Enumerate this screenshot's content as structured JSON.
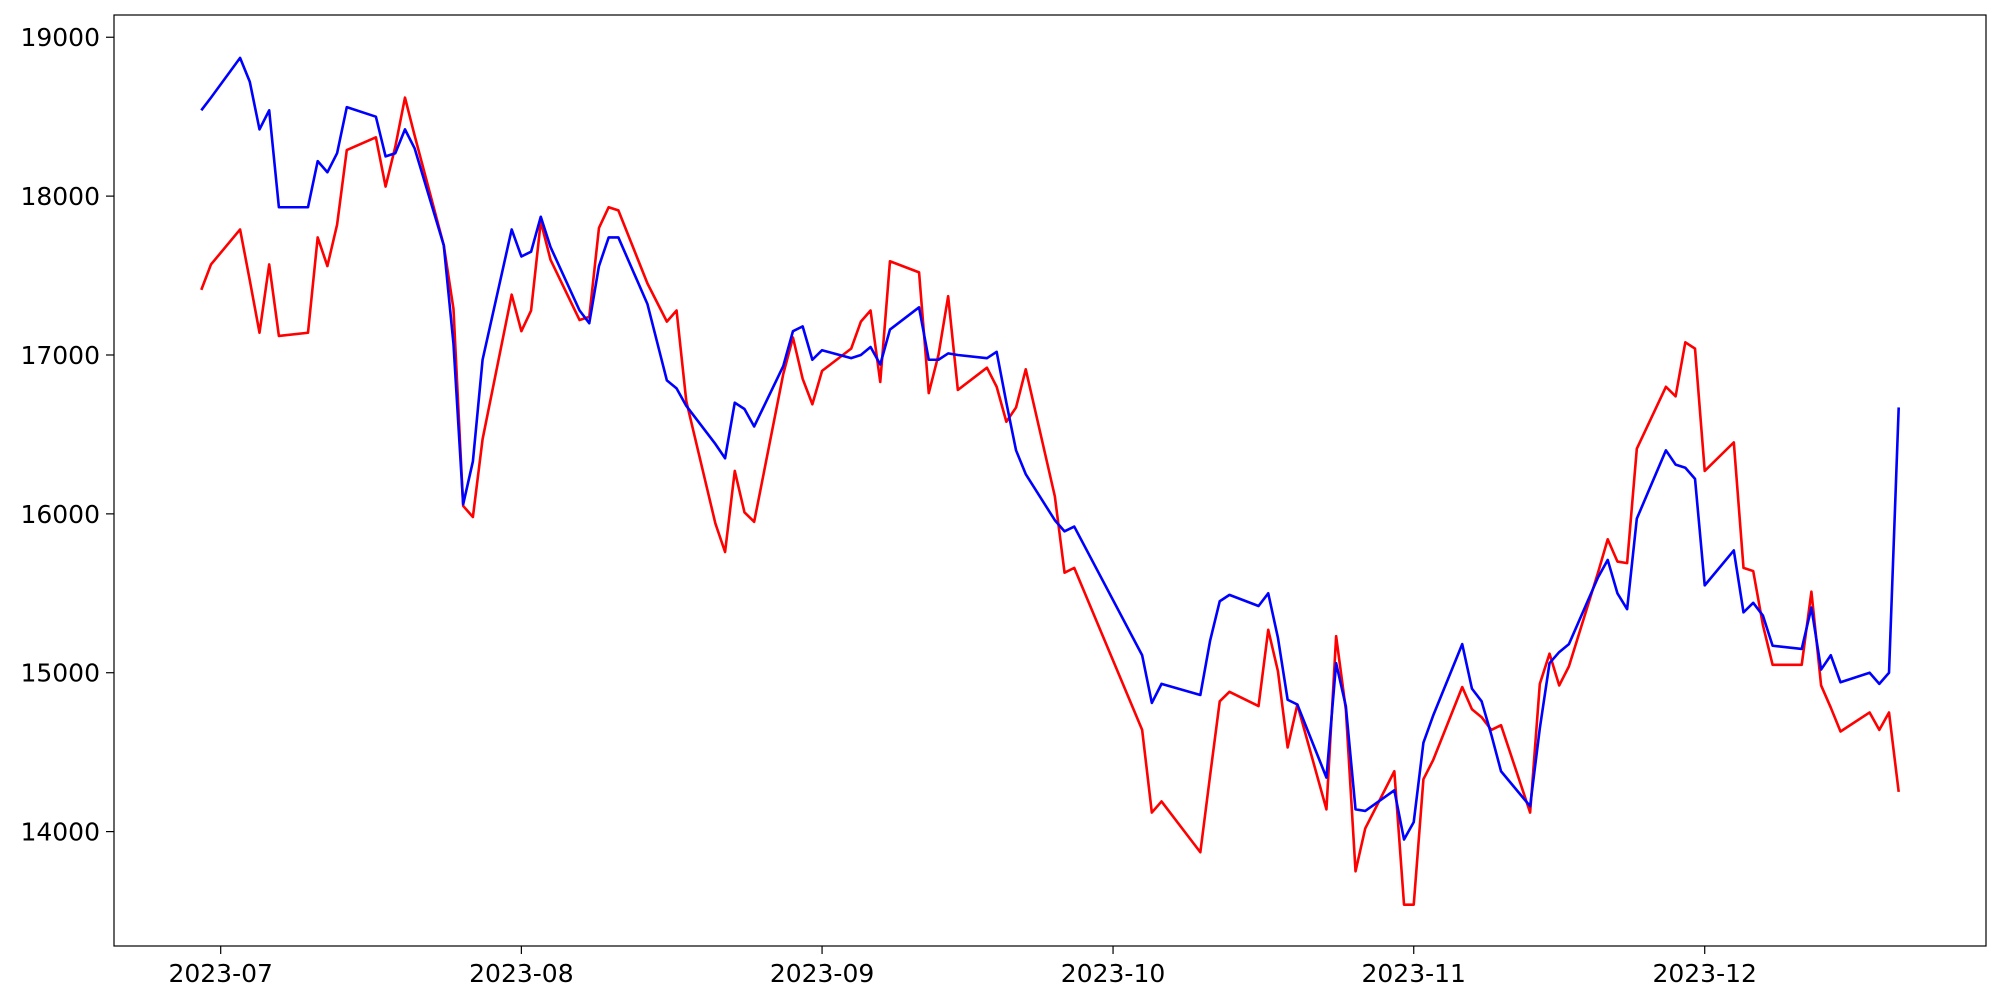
{
  "chart_data": {
    "type": "line",
    "x": [
      "2023-06-29",
      "2023-06-30",
      "2023-07-03",
      "2023-07-04",
      "2023-07-05",
      "2023-07-06",
      "2023-07-07",
      "2023-07-10",
      "2023-07-11",
      "2023-07-12",
      "2023-07-13",
      "2023-07-14",
      "2023-07-17",
      "2023-07-18",
      "2023-07-19",
      "2023-07-20",
      "2023-07-21",
      "2023-07-24",
      "2023-07-25",
      "2023-07-26",
      "2023-07-27",
      "2023-07-28",
      "2023-07-31",
      "2023-08-01",
      "2023-08-02",
      "2023-08-03",
      "2023-08-04",
      "2023-08-07",
      "2023-08-08",
      "2023-08-09",
      "2023-08-10",
      "2023-08-11",
      "2023-08-14",
      "2023-08-16",
      "2023-08-17",
      "2023-08-18",
      "2023-08-21",
      "2023-08-22",
      "2023-08-23",
      "2023-08-24",
      "2023-08-25",
      "2023-08-28",
      "2023-08-29",
      "2023-08-30",
      "2023-08-31",
      "2023-09-01",
      "2023-09-04",
      "2023-09-05",
      "2023-09-06",
      "2023-09-07",
      "2023-09-08",
      "2023-09-11",
      "2023-09-12",
      "2023-09-13",
      "2023-09-14",
      "2023-09-15",
      "2023-09-18",
      "2023-09-19",
      "2023-09-20",
      "2023-09-21",
      "2023-09-22",
      "2023-09-25",
      "2023-09-26",
      "2023-09-27",
      "2023-10-04",
      "2023-10-05",
      "2023-10-06",
      "2023-10-10",
      "2023-10-11",
      "2023-10-12",
      "2023-10-13",
      "2023-10-16",
      "2023-10-17",
      "2023-10-18",
      "2023-10-19",
      "2023-10-20",
      "2023-10-23",
      "2023-10-24",
      "2023-10-25",
      "2023-10-26",
      "2023-10-27",
      "2023-10-30",
      "2023-10-31",
      "2023-11-01",
      "2023-11-02",
      "2023-11-03",
      "2023-11-06",
      "2023-11-07",
      "2023-11-08",
      "2023-11-09",
      "2023-11-10",
      "2023-11-13",
      "2023-11-14",
      "2023-11-15",
      "2023-11-16",
      "2023-11-17",
      "2023-11-20",
      "2023-11-21",
      "2023-11-22",
      "2023-11-23",
      "2023-11-24",
      "2023-11-27",
      "2023-11-28",
      "2023-11-29",
      "2023-11-30",
      "2023-12-01",
      "2023-12-04",
      "2023-12-05",
      "2023-12-06",
      "2023-12-07",
      "2023-12-08",
      "2023-12-11",
      "2023-12-12",
      "2023-12-13",
      "2023-12-14",
      "2023-12-15",
      "2023-12-18",
      "2023-12-19",
      "2023-12-20",
      "2023-12-21"
    ],
    "series": [
      {
        "color": "#ff0000",
        "values": [
          17410,
          17570,
          17790,
          17470,
          17140,
          17570,
          17120,
          17140,
          17740,
          17560,
          17820,
          18290,
          18370,
          18060,
          18310,
          18620,
          18380,
          17690,
          17290,
          16050,
          15980,
          16470,
          17380,
          17150,
          17280,
          17840,
          17600,
          17220,
          17240,
          17800,
          17930,
          17910,
          17450,
          17210,
          17280,
          16710,
          15940,
          15760,
          16270,
          16010,
          15950,
          16880,
          17110,
          16850,
          16690,
          16900,
          17040,
          17210,
          17280,
          16830,
          17590,
          17520,
          16760,
          17000,
          17370,
          16780,
          16920,
          16800,
          16580,
          16670,
          16910,
          16110,
          15630,
          15660,
          14640,
          14120,
          14190,
          13870,
          14350,
          14820,
          14880,
          14790,
          15270,
          15010,
          14530,
          14800,
          14140,
          15230,
          14770,
          13750,
          14020,
          14380,
          13540,
          13540,
          14330,
          14450,
          14910,
          14770,
          14720,
          14640,
          14670,
          14120,
          14930,
          15120,
          14920,
          15040,
          15630,
          15840,
          15700,
          15690,
          16410,
          16800,
          16740,
          17080,
          17040,
          16270,
          16450,
          15660,
          15640,
          15300,
          15050,
          15050,
          15510,
          14920,
          14780,
          14630,
          14750,
          14640,
          14750,
          14250
        ]
      },
      {
        "color": "#0000ff",
        "values": [
          18540,
          18620,
          18870,
          18720,
          18420,
          18540,
          17930,
          17930,
          18220,
          18150,
          18270,
          18560,
          18500,
          18250,
          18270,
          18420,
          18300,
          17690,
          17070,
          16060,
          16330,
          16970,
          17790,
          17620,
          17650,
          17870,
          17680,
          17280,
          17200,
          17560,
          17740,
          17740,
          17320,
          16840,
          16790,
          16680,
          16440,
          16350,
          16700,
          16660,
          16550,
          16930,
          17150,
          17180,
          16970,
          17030,
          16980,
          17000,
          17050,
          16940,
          17160,
          17300,
          16970,
          16970,
          17010,
          17000,
          16980,
          17020,
          16700,
          16400,
          16250,
          15960,
          15890,
          15920,
          15110,
          14810,
          14930,
          14860,
          15200,
          15450,
          15490,
          15420,
          15500,
          15220,
          14830,
          14800,
          14340,
          15060,
          14790,
          14140,
          14130,
          14260,
          13950,
          14060,
          14560,
          14730,
          15180,
          14900,
          14820,
          14610,
          14380,
          14160,
          14650,
          15060,
          15130,
          15180,
          15600,
          15710,
          15500,
          15400,
          15970,
          16400,
          16310,
          16290,
          16220,
          15550,
          15770,
          15380,
          15440,
          15360,
          15170,
          15150,
          15410,
          15020,
          15110,
          14940,
          15000,
          14930,
          15000,
          16670
        ]
      }
    ],
    "xlim": [
      "2023-06-20",
      "2023-12-30"
    ],
    "xticks": [
      {
        "value": "2023-07-01",
        "label": "2023-07"
      },
      {
        "value": "2023-08-01",
        "label": "2023-08"
      },
      {
        "value": "2023-09-01",
        "label": "2023-09"
      },
      {
        "value": "2023-10-01",
        "label": "2023-10"
      },
      {
        "value": "2023-11-01",
        "label": "2023-11"
      },
      {
        "value": "2023-12-01",
        "label": "2023-12"
      }
    ],
    "ylim": [
      13280,
      19140
    ],
    "yticks": [
      14000,
      15000,
      16000,
      17000,
      18000,
      19000
    ],
    "grid": false
  }
}
